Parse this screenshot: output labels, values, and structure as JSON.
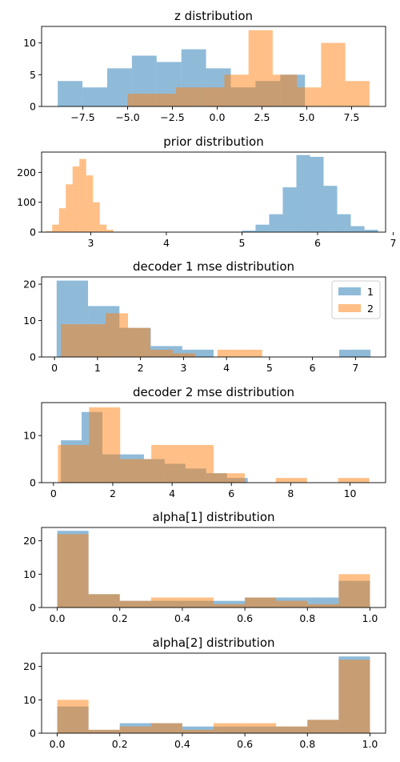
{
  "colors": {
    "series1": "#1f77b4",
    "series2": "#ff7f0e",
    "bar_alpha": 0.5
  },
  "chart_data": [
    {
      "type": "histogram",
      "title": "z distribution",
      "xlim": [
        -9.8,
        9.4
      ],
      "ylim": [
        0,
        12.6
      ],
      "xticks": [
        -7.5,
        -5.0,
        -2.5,
        0.0,
        2.5,
        5.0,
        7.5
      ],
      "xtick_labels": [
        "−7.5",
        "−5.0",
        "−2.5",
        "0.0",
        "2.5",
        "5.0",
        "7.5"
      ],
      "yticks": [
        0,
        5,
        10
      ],
      "series": [
        {
          "edges": [
            -8.9,
            -7.52,
            -6.14,
            -4.76,
            -3.38,
            -2.0,
            -0.62,
            0.76,
            2.14,
            3.52,
            4.9
          ],
          "counts": [
            4,
            3,
            6,
            8,
            7,
            9,
            6,
            3,
            4,
            5
          ]
        },
        {
          "edges": [
            -5.0,
            -3.65,
            -2.3,
            -0.95,
            0.4,
            1.75,
            3.1,
            4.45,
            5.8,
            7.15,
            8.5
          ],
          "counts": [
            2,
            2,
            3,
            3,
            5,
            12,
            5,
            3,
            10,
            4
          ]
        }
      ]
    },
    {
      "type": "histogram",
      "title": "prior distribution",
      "xlim": [
        2.35,
        6.9
      ],
      "ylim": [
        0,
        268
      ],
      "xticks": [
        3,
        4,
        5,
        6,
        7
      ],
      "xtick_labels": [
        "3",
        "4",
        "5",
        "6",
        "7"
      ],
      "yticks": [
        0,
        100,
        200
      ],
      "series": [
        {
          "edges": [
            5.0,
            5.18,
            5.36,
            5.54,
            5.72,
            5.9,
            6.08,
            6.26,
            6.44,
            6.62,
            6.8
          ],
          "counts": [
            5,
            25,
            60,
            150,
            258,
            252,
            155,
            60,
            20,
            8
          ]
        },
        {
          "edges": [
            2.4,
            2.49,
            2.58,
            2.67,
            2.76,
            2.85,
            2.94,
            3.03,
            3.12,
            3.21,
            3.3
          ],
          "counts": [
            3,
            25,
            80,
            160,
            220,
            245,
            190,
            100,
            25,
            8
          ]
        }
      ]
    },
    {
      "type": "histogram",
      "title": "decoder 1 mse distribution",
      "xlim": [
        -0.3,
        7.7
      ],
      "ylim": [
        0,
        22
      ],
      "xticks": [
        0,
        1,
        2,
        3,
        4,
        5,
        6,
        7
      ],
      "xtick_labels": [
        "0",
        "1",
        "2",
        "3",
        "4",
        "5",
        "6",
        "7"
      ],
      "yticks": [
        0,
        10,
        20
      ],
      "legend": {
        "position": "upper right",
        "labels": [
          "1",
          "2"
        ]
      },
      "series": [
        {
          "name": "1",
          "edges": [
            0.05,
            0.78,
            1.51,
            2.24,
            2.97,
            3.7,
            4.43,
            5.16,
            5.89,
            6.62,
            7.35
          ],
          "counts": [
            21,
            14,
            8,
            3,
            2,
            0,
            0,
            0,
            0,
            2
          ]
        },
        {
          "name": "2",
          "edges": [
            0.15,
            0.67,
            1.19,
            1.71,
            2.23,
            2.75,
            3.27,
            3.79,
            4.31,
            4.83,
            5.35
          ],
          "counts": [
            9,
            9,
            12,
            8,
            2,
            1,
            0,
            2,
            2,
            0
          ]
        }
      ]
    },
    {
      "type": "histogram",
      "title": "decoder 2 mse distribution",
      "xlim": [
        -0.4,
        11.2
      ],
      "ylim": [
        0,
        17
      ],
      "xticks": [
        0,
        2,
        4,
        6,
        8,
        10
      ],
      "xtick_labels": [
        "0",
        "2",
        "4",
        "6",
        "8",
        "10"
      ],
      "yticks": [
        0,
        10
      ],
      "series": [
        {
          "edges": [
            0.25,
            0.95,
            1.65,
            2.35,
            3.05,
            3.75,
            4.45,
            5.15,
            5.85,
            6.55,
            7.25
          ],
          "counts": [
            9,
            15,
            6,
            6,
            5,
            4,
            3,
            2,
            1,
            0
          ]
        },
        {
          "edges": [
            0.15,
            1.2,
            2.25,
            3.3,
            4.35,
            5.4,
            6.45,
            7.5,
            8.55,
            9.6,
            10.65
          ],
          "counts": [
            8,
            16,
            5,
            8,
            8,
            2,
            0,
            1,
            0,
            1
          ]
        }
      ]
    },
    {
      "type": "histogram",
      "title": "alpha[1] distribution",
      "xlim": [
        -0.05,
        1.05
      ],
      "ylim": [
        0,
        24
      ],
      "xticks": [
        0.0,
        0.2,
        0.4,
        0.6,
        0.8,
        1.0
      ],
      "xtick_labels": [
        "0.0",
        "0.2",
        "0.4",
        "0.6",
        "0.8",
        "1.0"
      ],
      "yticks": [
        0,
        10,
        20
      ],
      "series": [
        {
          "edges": [
            0,
            0.1,
            0.2,
            0.3,
            0.4,
            0.5,
            0.6,
            0.7,
            0.8,
            0.9,
            1.0
          ],
          "counts": [
            23,
            4,
            2,
            2,
            2,
            2,
            3,
            3,
            3,
            8
          ]
        },
        {
          "edges": [
            0,
            0.1,
            0.2,
            0.3,
            0.4,
            0.5,
            0.6,
            0.7,
            0.8,
            0.9,
            1.0
          ],
          "counts": [
            22,
            4,
            2,
            3,
            3,
            1,
            3,
            2,
            1,
            10
          ]
        }
      ]
    },
    {
      "type": "histogram",
      "title": "alpha[2] distribution",
      "xlim": [
        -0.05,
        1.05
      ],
      "ylim": [
        0,
        24
      ],
      "xticks": [
        0.0,
        0.2,
        0.4,
        0.6,
        0.8,
        1.0
      ],
      "xtick_labels": [
        "0.0",
        "0.2",
        "0.4",
        "0.6",
        "0.8",
        "1.0"
      ],
      "yticks": [
        0,
        10,
        20
      ],
      "series": [
        {
          "edges": [
            0,
            0.1,
            0.2,
            0.3,
            0.4,
            0.5,
            0.6,
            0.7,
            0.8,
            0.9,
            1.0
          ],
          "counts": [
            8,
            1,
            3,
            3,
            2,
            2,
            2,
            2,
            4,
            23
          ]
        },
        {
          "edges": [
            0,
            0.1,
            0.2,
            0.3,
            0.4,
            0.5,
            0.6,
            0.7,
            0.8,
            0.9,
            1.0
          ],
          "counts": [
            10,
            1,
            2,
            3,
            1,
            3,
            3,
            2,
            4,
            22
          ]
        }
      ]
    }
  ]
}
